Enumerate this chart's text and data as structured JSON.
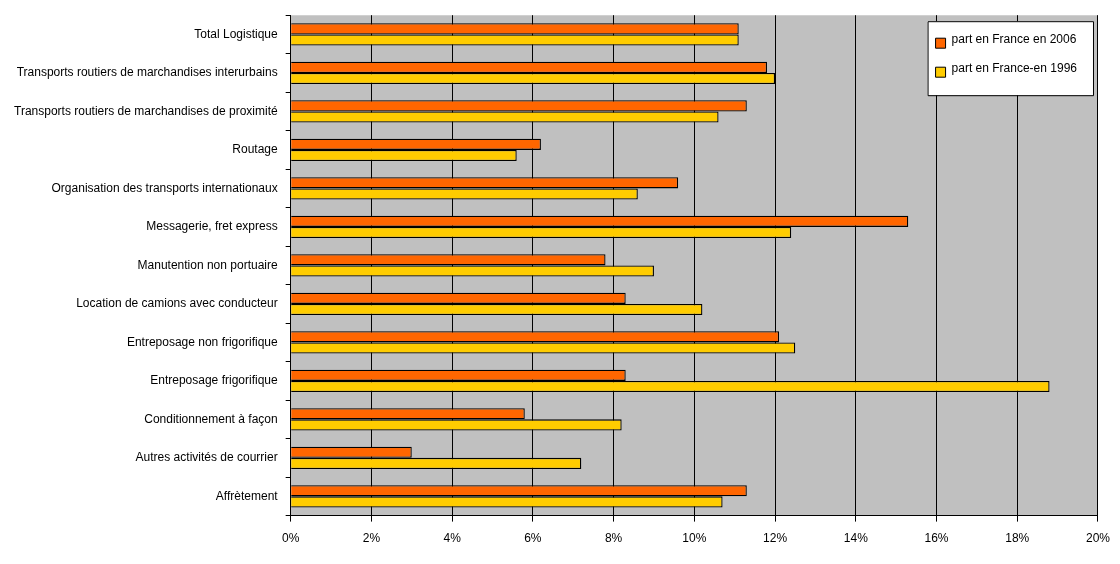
{
  "chart_data": {
    "type": "bar",
    "orientation": "horizontal",
    "categories": [
      "Total Logistique",
      "Transports routiers de marchandises interurbains",
      "Transports routiers de marchandises de proximité",
      "Routage",
      "Organisation des transports internationaux",
      "Messagerie, fret express",
      "Manutention non portuaire",
      "Location de camions avec conducteur",
      "Entreposage non frigorifique",
      "Entreposage frigorifique",
      "Conditionnement à façon",
      "Autres activités de courrier",
      "Affrètement"
    ],
    "series": [
      {
        "name": "part en France en 2006",
        "color": "#ff6600",
        "values": [
          11.1,
          11.8,
          11.3,
          6.2,
          9.6,
          15.3,
          7.8,
          8.3,
          12.1,
          8.3,
          5.8,
          3.0,
          11.3
        ]
      },
      {
        "name": "part en France-en 1996",
        "color": "#ffcc00",
        "values": [
          11.1,
          12.0,
          10.6,
          5.6,
          8.6,
          12.4,
          9.0,
          10.2,
          12.5,
          18.8,
          8.2,
          7.2,
          10.7
        ]
      }
    ],
    "xlim": [
      0,
      20
    ],
    "xticks": [
      {
        "value": 0,
        "label": "0%"
      },
      {
        "value": 2,
        "label": "2%"
      },
      {
        "value": 4,
        "label": "4%"
      },
      {
        "value": 6,
        "label": "6%"
      },
      {
        "value": 8,
        "label": "8%"
      },
      {
        "value": 10,
        "label": "10%"
      },
      {
        "value": 12,
        "label": "12%"
      },
      {
        "value": 14,
        "label": "14%"
      },
      {
        "value": 16,
        "label": "16%"
      },
      {
        "value": 18,
        "label": "18%"
      },
      {
        "value": 20,
        "label": "20%"
      }
    ],
    "grid": "x",
    "legend": "top right"
  }
}
